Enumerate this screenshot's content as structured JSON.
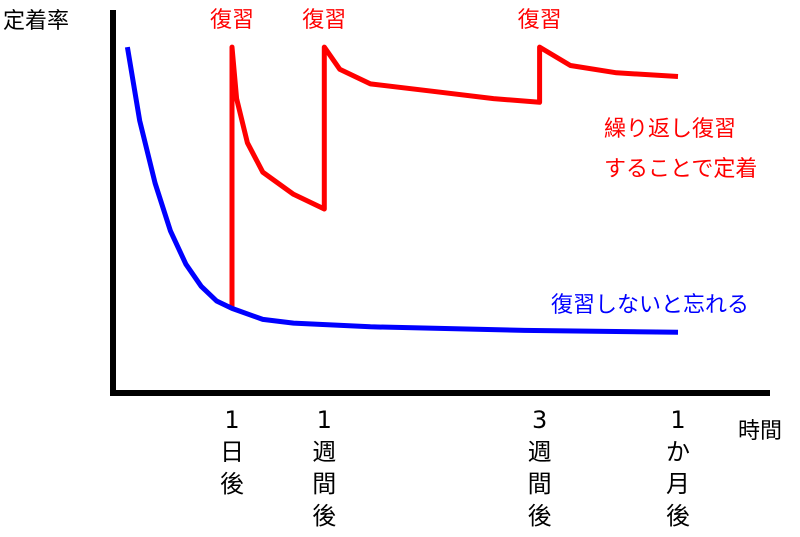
{
  "chart_data": {
    "type": "line",
    "title": "",
    "ylabel": "定着率",
    "xlabel": "時間",
    "grid": false,
    "y_axis_ticks": false,
    "x_ticks": [
      {
        "x": 1,
        "lines": [
          "1",
          "日",
          "後"
        ]
      },
      {
        "x": 7,
        "lines": [
          "1",
          "週",
          "間",
          "後"
        ]
      },
      {
        "x": 21,
        "lines": [
          "3",
          "週",
          "間",
          "後"
        ]
      },
      {
        "x": 30,
        "lines": [
          "1",
          "か",
          "月",
          "後"
        ]
      }
    ],
    "review_markers": [
      {
        "x": 1,
        "label": "復習"
      },
      {
        "x": 7,
        "label": "復習"
      },
      {
        "x": 21,
        "label": "復習"
      }
    ],
    "series": [
      {
        "name": "繰り返し復習することで定着",
        "label_lines": [
          "繰り返し復習",
          "することで定着"
        ],
        "color": "#ff0000",
        "points": [
          [
            1,
            0.23
          ],
          [
            1,
            0.94
          ],
          [
            1.3,
            0.8
          ],
          [
            2,
            0.68
          ],
          [
            3,
            0.6
          ],
          [
            5,
            0.54
          ],
          [
            7,
            0.5
          ],
          [
            7,
            0.94
          ],
          [
            8,
            0.88
          ],
          [
            10,
            0.84
          ],
          [
            14,
            0.82
          ],
          [
            18,
            0.8
          ],
          [
            21,
            0.79
          ],
          [
            21,
            0.94
          ],
          [
            23,
            0.89
          ],
          [
            26,
            0.87
          ],
          [
            30,
            0.86
          ]
        ]
      },
      {
        "name": "復習しないと忘れる",
        "label_lines": [
          "復習しないと忘れる"
        ],
        "color": "#0000ff",
        "points": [
          [
            -5.8,
            0.94
          ],
          [
            -5,
            0.74
          ],
          [
            -4,
            0.57
          ],
          [
            -3,
            0.44
          ],
          [
            -2,
            0.35
          ],
          [
            -1,
            0.29
          ],
          [
            0,
            0.25
          ],
          [
            1,
            0.23
          ],
          [
            3,
            0.2
          ],
          [
            5,
            0.19
          ],
          [
            10,
            0.18
          ],
          [
            20,
            0.17
          ],
          [
            30,
            0.165
          ]
        ]
      }
    ]
  }
}
